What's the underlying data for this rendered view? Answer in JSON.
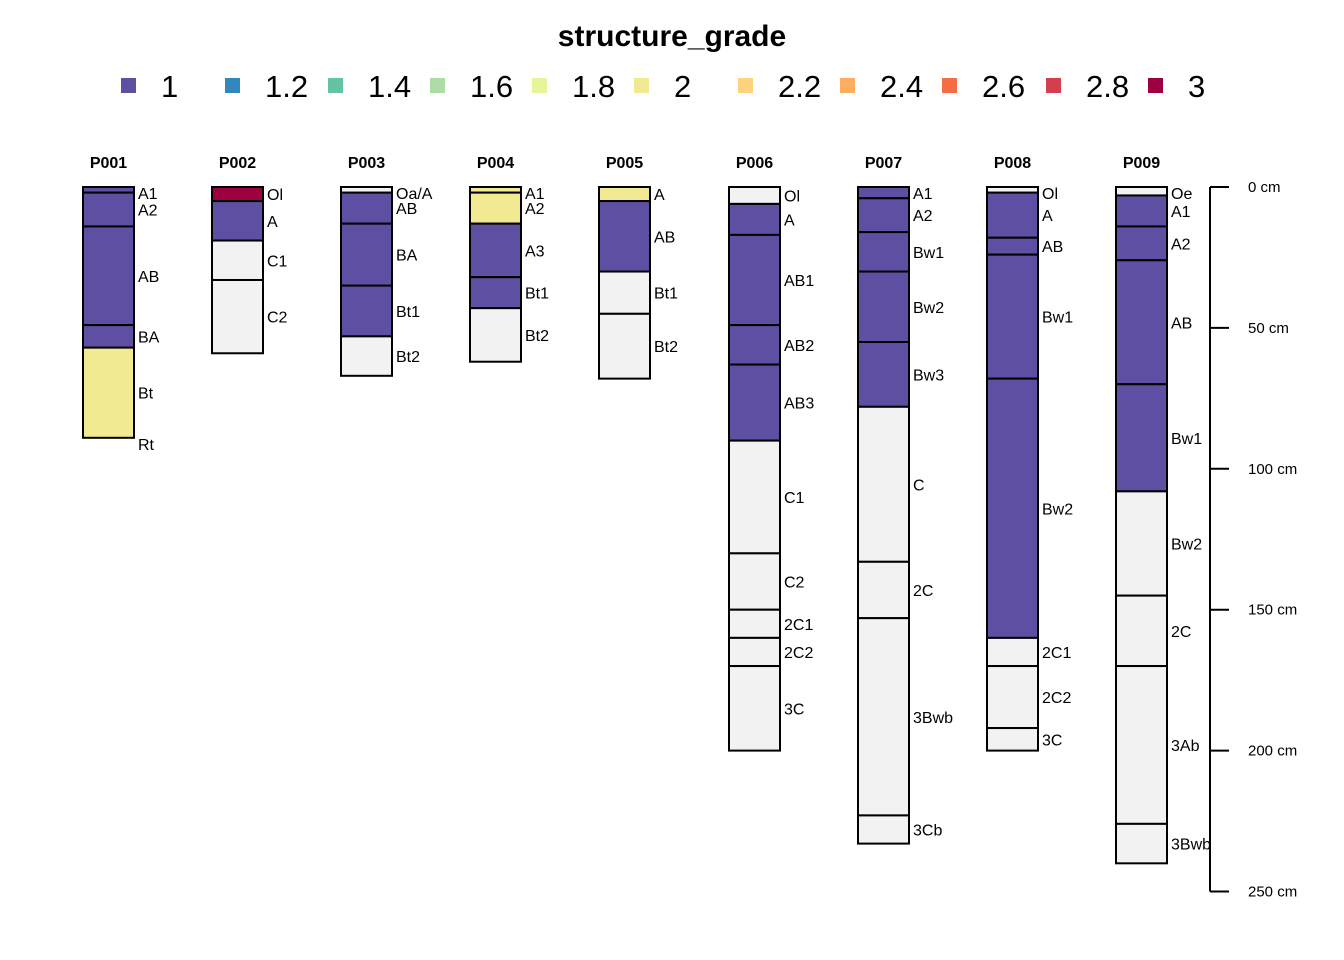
{
  "chart_data": {
    "type": "soil_profile",
    "title": "structure_grade",
    "legend": {
      "placement": "top",
      "items": [
        {
          "label": "1",
          "color": "#5E4FA2"
        },
        {
          "label": "1.2",
          "color": "#3288BD"
        },
        {
          "label": "1.4",
          "color": "#66C2A5"
        },
        {
          "label": "1.6",
          "color": "#ABDDA4"
        },
        {
          "label": "1.8",
          "color": "#E6F598"
        },
        {
          "label": "2",
          "color": "#F2EA93"
        },
        {
          "label": "2.2",
          "color": "#FDD37F"
        },
        {
          "label": "2.4",
          "color": "#FDAE61"
        },
        {
          "label": "2.6",
          "color": "#F46D43"
        },
        {
          "label": "2.8",
          "color": "#D53E4F"
        },
        {
          "label": "3",
          "color": "#9E0142"
        }
      ]
    },
    "missing_color": "#F2F2F2",
    "depth_axis": {
      "unit": "cm",
      "range": [
        0,
        250
      ],
      "ticks": [
        {
          "value": 0,
          "label": "0 cm"
        },
        {
          "value": 50,
          "label": "50 cm"
        },
        {
          "value": 100,
          "label": "100 cm"
        },
        {
          "value": 150,
          "label": "150 cm"
        },
        {
          "value": 200,
          "label": "200 cm"
        },
        {
          "value": 250,
          "label": "250 cm"
        }
      ]
    },
    "profiles": [
      {
        "id": "P001",
        "horizons": [
          {
            "name": "A1",
            "top": 0,
            "bottom": 2,
            "grade": 1
          },
          {
            "name": "A2",
            "top": 2,
            "bottom": 14,
            "grade": 1
          },
          {
            "name": "AB",
            "top": 14,
            "bottom": 49,
            "grade": 1
          },
          {
            "name": "BA",
            "top": 49,
            "bottom": 57,
            "grade": 1
          },
          {
            "name": "Bt",
            "top": 57,
            "bottom": 89,
            "grade": 2
          },
          {
            "name": "Rt",
            "top": 89,
            "bottom": 89,
            "grade": null
          }
        ]
      },
      {
        "id": "P002",
        "horizons": [
          {
            "name": "Ol",
            "top": 0,
            "bottom": 5,
            "grade": 3
          },
          {
            "name": "A",
            "top": 5,
            "bottom": 19,
            "grade": 1
          },
          {
            "name": "C1",
            "top": 19,
            "bottom": 33,
            "grade": null
          },
          {
            "name": "C2",
            "top": 33,
            "bottom": 59,
            "grade": null
          }
        ]
      },
      {
        "id": "P003",
        "horizons": [
          {
            "name": "Oa/A",
            "top": 0,
            "bottom": 2,
            "grade": null
          },
          {
            "name": "AB",
            "top": 2,
            "bottom": 13,
            "grade": 1
          },
          {
            "name": "BA",
            "top": 13,
            "bottom": 35,
            "grade": 1
          },
          {
            "name": "Bt1",
            "top": 35,
            "bottom": 53,
            "grade": 1
          },
          {
            "name": "Bt2",
            "top": 53,
            "bottom": 67,
            "grade": null
          }
        ]
      },
      {
        "id": "P004",
        "horizons": [
          {
            "name": "A1",
            "top": 0,
            "bottom": 2,
            "grade": 2
          },
          {
            "name": "A2",
            "top": 2,
            "bottom": 13,
            "grade": 2
          },
          {
            "name": "A3",
            "top": 13,
            "bottom": 32,
            "grade": 1
          },
          {
            "name": "Bt1",
            "top": 32,
            "bottom": 43,
            "grade": 1
          },
          {
            "name": "Bt2",
            "top": 43,
            "bottom": 62,
            "grade": null
          }
        ]
      },
      {
        "id": "P005",
        "horizons": [
          {
            "name": "A",
            "top": 0,
            "bottom": 5,
            "grade": 2
          },
          {
            "name": "AB",
            "top": 5,
            "bottom": 30,
            "grade": 1
          },
          {
            "name": "Bt1",
            "top": 30,
            "bottom": 45,
            "grade": null
          },
          {
            "name": "Bt2",
            "top": 45,
            "bottom": 68,
            "grade": null
          }
        ]
      },
      {
        "id": "P006",
        "horizons": [
          {
            "name": "Ol",
            "top": 0,
            "bottom": 6,
            "grade": null
          },
          {
            "name": "A",
            "top": 6,
            "bottom": 17,
            "grade": 1
          },
          {
            "name": "AB1",
            "top": 17,
            "bottom": 49,
            "grade": 1
          },
          {
            "name": "AB2",
            "top": 49,
            "bottom": 63,
            "grade": 1
          },
          {
            "name": "AB3",
            "top": 63,
            "bottom": 90,
            "grade": 1
          },
          {
            "name": "C1",
            "top": 90,
            "bottom": 130,
            "grade": null
          },
          {
            "name": "C2",
            "top": 130,
            "bottom": 150,
            "grade": null
          },
          {
            "name": "2C1",
            "top": 150,
            "bottom": 160,
            "grade": null
          },
          {
            "name": "2C2",
            "top": 160,
            "bottom": 170,
            "grade": null
          },
          {
            "name": "3C",
            "top": 170,
            "bottom": 200,
            "grade": null
          }
        ]
      },
      {
        "id": "P007",
        "horizons": [
          {
            "name": "A1",
            "top": 0,
            "bottom": 4,
            "grade": 1
          },
          {
            "name": "A2",
            "top": 4,
            "bottom": 16,
            "grade": 1
          },
          {
            "name": "Bw1",
            "top": 16,
            "bottom": 30,
            "grade": 1
          },
          {
            "name": "Bw2",
            "top": 30,
            "bottom": 55,
            "grade": 1
          },
          {
            "name": "Bw3",
            "top": 55,
            "bottom": 78,
            "grade": 1
          },
          {
            "name": "C",
            "top": 78,
            "bottom": 133,
            "grade": null
          },
          {
            "name": "2C",
            "top": 133,
            "bottom": 153,
            "grade": null
          },
          {
            "name": "3Bwb",
            "top": 153,
            "bottom": 223,
            "grade": null
          },
          {
            "name": "3Cb",
            "top": 223,
            "bottom": 233,
            "grade": null
          }
        ]
      },
      {
        "id": "P008",
        "horizons": [
          {
            "name": "Ol",
            "top": 0,
            "bottom": 2,
            "grade": null
          },
          {
            "name": "A",
            "top": 2,
            "bottom": 18,
            "grade": 1
          },
          {
            "name": "AB",
            "top": 18,
            "bottom": 24,
            "grade": 1
          },
          {
            "name": "Bw1",
            "top": 24,
            "bottom": 68,
            "grade": 1
          },
          {
            "name": "Bw2",
            "top": 68,
            "bottom": 160,
            "grade": 1
          },
          {
            "name": "2C1",
            "top": 160,
            "bottom": 170,
            "grade": null
          },
          {
            "name": "2C2",
            "top": 170,
            "bottom": 192,
            "grade": null
          },
          {
            "name": "3C",
            "top": 192,
            "bottom": 200,
            "grade": null
          }
        ]
      },
      {
        "id": "P009",
        "horizons": [
          {
            "name": "Oe",
            "top": 0,
            "bottom": 3,
            "grade": null
          },
          {
            "name": "A1",
            "top": 3,
            "bottom": 14,
            "grade": 1
          },
          {
            "name": "A2",
            "top": 14,
            "bottom": 26,
            "grade": 1
          },
          {
            "name": "AB",
            "top": 26,
            "bottom": 70,
            "grade": 1
          },
          {
            "name": "Bw1",
            "top": 70,
            "bottom": 108,
            "grade": 1
          },
          {
            "name": "Bw2",
            "top": 108,
            "bottom": 145,
            "grade": null
          },
          {
            "name": "2C",
            "top": 145,
            "bottom": 170,
            "grade": null
          },
          {
            "name": "3Ab",
            "top": 170,
            "bottom": 226,
            "grade": null
          },
          {
            "name": "3Bwb",
            "top": 226,
            "bottom": 240,
            "grade": null
          }
        ]
      }
    ]
  }
}
